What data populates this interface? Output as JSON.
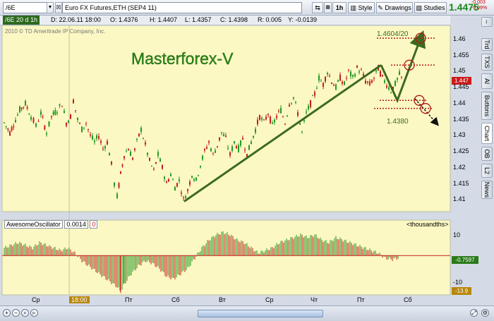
{
  "toolbar": {
    "symbol_input": "/6E",
    "instrument": "Euro FX Futures,ETH (SEP4 11)",
    "interval": "1h",
    "style_label": "Style",
    "drawings_label": "Drawings",
    "studies_label": "Studies",
    "last_price": "1.4475",
    "change_1": "-0.003",
    "change_2": "-0.09%"
  },
  "infobar": {
    "symbol_tag": "/6E 20 d 1h",
    "date": "D: 22.06.11 18:00",
    "open": "O: 1.4376",
    "high": "H: 1.4407",
    "low": "L: 1.4357",
    "close": "C: 1.4398",
    "range": "R: 0.005",
    "y": "Y: -0.0139"
  },
  "chart": {
    "copyright": "2010 © TD Ameritrade IP Company, Inc.",
    "watermark": "Masterforex-V",
    "annotation_top": "1.4604/20",
    "annotation_bottom": "1.4380",
    "price_marker": "1.447",
    "colors": {
      "bg": "#fbf8c4",
      "up": "#1f9a1f",
      "down": "#c41e1e",
      "trend": "#3d6b1e",
      "level": "#b01818"
    }
  },
  "chart_data": {
    "type": "candlestick",
    "y_axis_ticks": [
      "1.46",
      "1.455",
      "1.45",
      "1.445",
      "1.44",
      "1.435",
      "1.43",
      "1.425",
      "1.42",
      "1.415",
      "1.41"
    ],
    "ylim": [
      1.4072,
      1.4635
    ],
    "x_axis_ticks": [
      "Ср",
      "18:00",
      "Пт",
      "Сб",
      "Вт",
      "Ср",
      "Чт",
      "Пт",
      "Сб"
    ],
    "close_path": [
      [
        0,
        1.434
      ],
      [
        8,
        1.431
      ],
      [
        16,
        1.435
      ],
      [
        22,
        1.438
      ],
      [
        30,
        1.44
      ],
      [
        38,
        1.436
      ],
      [
        45,
        1.433
      ],
      [
        52,
        1.437
      ],
      [
        60,
        1.431
      ],
      [
        67,
        1.436
      ],
      [
        75,
        1.438
      ],
      [
        82,
        1.44
      ],
      [
        88,
        1.434
      ],
      [
        94,
        1.436
      ],
      [
        98,
        1.441
      ],
      [
        104,
        1.435
      ],
      [
        110,
        1.432
      ],
      [
        116,
        1.434
      ],
      [
        122,
        1.43
      ],
      [
        128,
        1.428
      ],
      [
        134,
        1.43
      ],
      [
        140,
        1.426
      ],
      [
        146,
        1.428
      ],
      [
        152,
        1.421
      ],
      [
        156,
        1.415
      ],
      [
        160,
        1.411
      ],
      [
        165,
        1.418
      ],
      [
        170,
        1.424
      ],
      [
        176,
        1.426
      ],
      [
        182,
        1.423
      ],
      [
        188,
        1.428
      ],
      [
        194,
        1.432
      ],
      [
        200,
        1.427
      ],
      [
        206,
        1.422
      ],
      [
        212,
        1.419
      ],
      [
        218,
        1.424
      ],
      [
        224,
        1.42
      ],
      [
        230,
        1.415
      ],
      [
        236,
        1.418
      ],
      [
        242,
        1.414
      ],
      [
        248,
        1.416
      ],
      [
        254,
        1.41
      ],
      [
        260,
        1.413
      ],
      [
        266,
        1.418
      ],
      [
        272,
        1.416
      ],
      [
        278,
        1.421
      ],
      [
        284,
        1.425
      ],
      [
        290,
        1.428
      ],
      [
        296,
        1.424
      ],
      [
        302,
        1.427
      ],
      [
        308,
        1.431
      ],
      [
        314,
        1.429
      ],
      [
        320,
        1.424
      ],
      [
        326,
        1.428
      ],
      [
        332,
        1.426
      ],
      [
        338,
        1.429
      ],
      [
        344,
        1.424
      ],
      [
        350,
        1.428
      ],
      [
        356,
        1.432
      ],
      [
        362,
        1.436
      ],
      [
        368,
        1.434
      ],
      [
        374,
        1.437
      ],
      [
        380,
        1.433
      ],
      [
        386,
        1.436
      ],
      [
        392,
        1.438
      ],
      [
        398,
        1.434
      ],
      [
        404,
        1.44
      ],
      [
        410,
        1.442
      ],
      [
        416,
        1.437
      ],
      [
        422,
        1.431
      ],
      [
        428,
        1.437
      ],
      [
        434,
        1.44
      ],
      [
        440,
        1.443
      ],
      [
        446,
        1.448
      ],
      [
        452,
        1.446
      ],
      [
        458,
        1.45
      ],
      [
        464,
        1.447
      ],
      [
        470,
        1.445
      ],
      [
        476,
        1.448
      ],
      [
        482,
        1.446
      ],
      [
        488,
        1.45
      ],
      [
        494,
        1.448
      ],
      [
        500,
        1.451
      ],
      [
        506,
        1.45
      ],
      [
        512,
        1.447
      ],
      [
        518,
        1.446
      ],
      [
        524,
        1.448
      ],
      [
        530,
        1.451
      ],
      [
        536,
        1.448
      ],
      [
        542,
        1.446
      ],
      [
        548,
        1.444
      ],
      [
        554,
        1.446
      ],
      [
        560,
        1.449
      ],
      [
        566,
        1.447
      ]
    ],
    "trend_line": [
      [
        255,
        1.4095
      ],
      [
        534,
        1.452
      ]
    ],
    "projection_up": [
      [
        534,
        1.452
      ],
      [
        557,
        1.441
      ],
      [
        590,
        1.4604
      ]
    ],
    "projection_down": [
      [
        582,
        1.4415
      ],
      [
        612,
        1.434
      ]
    ],
    "levels": [
      1.4604,
      1.452,
      1.441,
      1.4385
    ],
    "oscillator": {
      "name": "AwesomeOscillator",
      "value_label": "0.0014",
      "zero_label": "0",
      "units": "<thousandths>",
      "ticks": [
        "10",
        "-10"
      ],
      "ylim": [
        -14,
        12
      ],
      "last_value": "-0.7597",
      "min_label": "-13.9",
      "series": [
        [
          0,
          3
        ],
        [
          10,
          4
        ],
        [
          20,
          5
        ],
        [
          30,
          4
        ],
        [
          40,
          3
        ],
        [
          50,
          5
        ],
        [
          60,
          4
        ],
        [
          70,
          3
        ],
        [
          80,
          2
        ],
        [
          90,
          3
        ],
        [
          100,
          1
        ],
        [
          110,
          -2
        ],
        [
          120,
          -4
        ],
        [
          130,
          -6
        ],
        [
          140,
          -8
        ],
        [
          150,
          -10
        ],
        [
          160,
          -12
        ],
        [
          165,
          -13.9
        ],
        [
          170,
          -11
        ],
        [
          180,
          -7
        ],
        [
          190,
          -4
        ],
        [
          200,
          -2
        ],
        [
          210,
          -3
        ],
        [
          220,
          -5
        ],
        [
          230,
          -8
        ],
        [
          240,
          -9
        ],
        [
          250,
          -7
        ],
        [
          260,
          -5
        ],
        [
          270,
          -1
        ],
        [
          280,
          3
        ],
        [
          290,
          6
        ],
        [
          300,
          8
        ],
        [
          310,
          9
        ],
        [
          320,
          8
        ],
        [
          330,
          6
        ],
        [
          340,
          5
        ],
        [
          350,
          3
        ],
        [
          360,
          1
        ],
        [
          370,
          2
        ],
        [
          380,
          3
        ],
        [
          390,
          5
        ],
        [
          400,
          6
        ],
        [
          410,
          7
        ],
        [
          420,
          8
        ],
        [
          430,
          7
        ],
        [
          440,
          8
        ],
        [
          450,
          6
        ],
        [
          460,
          5
        ],
        [
          470,
          7
        ],
        [
          480,
          6
        ],
        [
          490,
          5
        ],
        [
          500,
          4
        ],
        [
          510,
          3
        ],
        [
          520,
          2
        ],
        [
          530,
          1
        ],
        [
          540,
          -1
        ],
        [
          550,
          -1.5
        ],
        [
          560,
          -0.8
        ]
      ]
    }
  }
}
